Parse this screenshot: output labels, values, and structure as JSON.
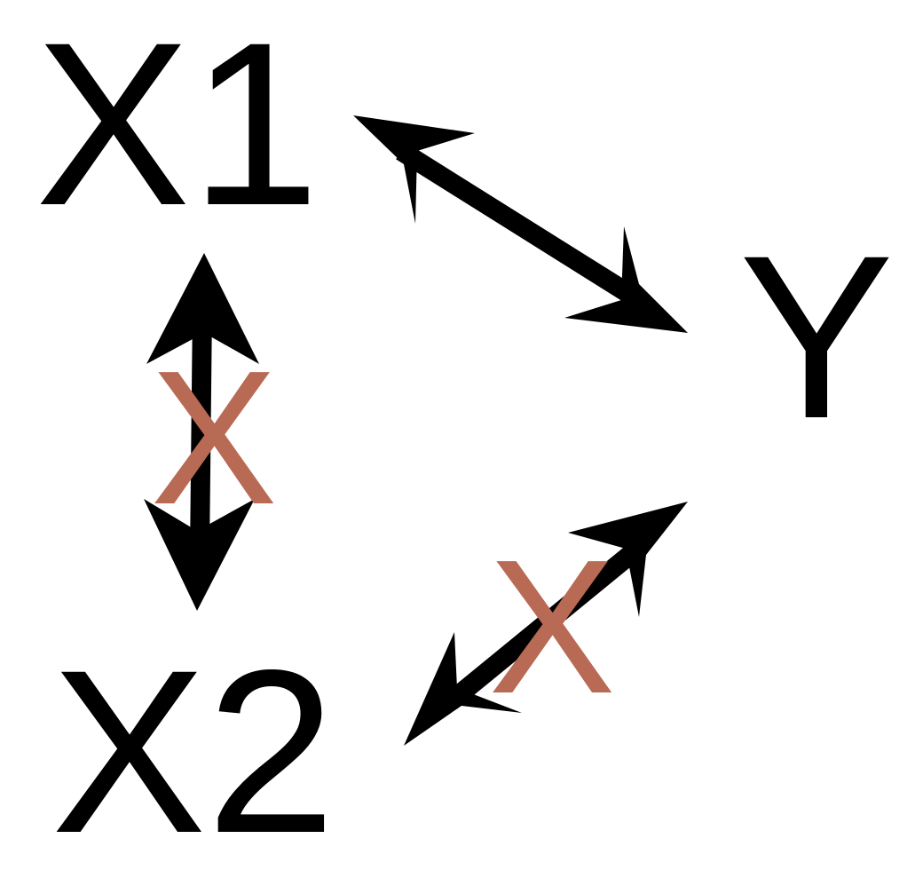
{
  "nodes": {
    "x1": "X1",
    "x2": "X2",
    "y": "Y"
  },
  "crosses": {
    "x1_x2": "X",
    "x2_y": "X"
  },
  "colors": {
    "text": "#000000",
    "arrow": "#000000",
    "cross": "#b86a55",
    "background": "#ffffff"
  },
  "edges": [
    {
      "from": "X1",
      "to": "Y",
      "direction": "bidirectional",
      "crossed": false
    },
    {
      "from": "X1",
      "to": "X2",
      "direction": "bidirectional",
      "crossed": true
    },
    {
      "from": "X2",
      "to": "Y",
      "direction": "bidirectional",
      "crossed": true
    }
  ]
}
